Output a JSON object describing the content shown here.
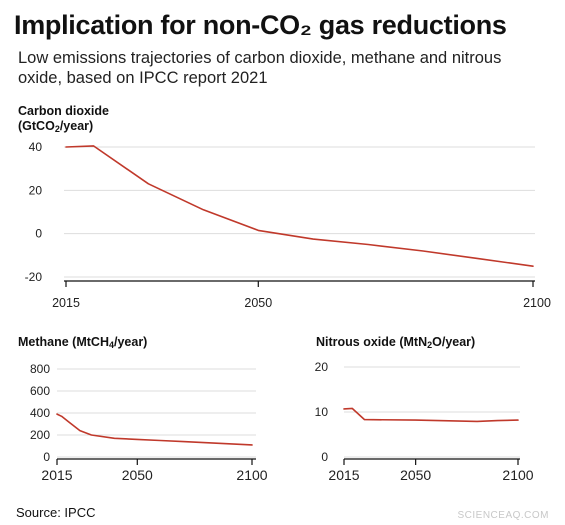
{
  "header": {
    "title": "Implication for non-CO₂ gas reductions",
    "subtitle": "Low emissions trajectories of carbon dioxide, methane and nitrous oxide, based on IPCC report 2021"
  },
  "footer": {
    "source": "Source: IPCC",
    "watermark": "SCIENCEAQ.COM"
  },
  "colors": {
    "line": "#c0392b",
    "grid": "#dddddd",
    "axis": "#111111"
  },
  "chart_data": [
    {
      "id": "co2",
      "type": "line",
      "title_main": "Carbon dioxide",
      "title_unit_pre": "(GtCO",
      "title_unit_sub": "2",
      "title_unit_post": "/year)",
      "x": [
        2015,
        2020,
        2030,
        2040,
        2050,
        2060,
        2070,
        2080,
        2090,
        2100
      ],
      "series": [
        {
          "values": [
            40,
            40.5,
            23,
            11,
            1.5,
            -2.5,
            -5,
            -8,
            -11.5,
            -15
          ]
        }
      ],
      "xlim": [
        2015,
        2100
      ],
      "ylim": [
        -20,
        40
      ],
      "xticks": [
        2015,
        2050,
        2100
      ],
      "yticks": [
        40,
        20,
        0,
        -20
      ],
      "grid": true
    },
    {
      "id": "ch4",
      "type": "line",
      "title_pre": "Methane (MtCH",
      "title_sub": "4",
      "title_post": "/year)",
      "x": [
        2015,
        2017,
        2020,
        2025,
        2030,
        2040,
        2050,
        2060,
        2070,
        2080,
        2090,
        2100
      ],
      "series": [
        {
          "values": [
            390,
            370,
            320,
            240,
            200,
            170,
            160,
            150,
            140,
            130,
            120,
            110
          ]
        }
      ],
      "xlim": [
        2015,
        2100
      ],
      "ylim": [
        0,
        800
      ],
      "xticks": [
        2015,
        2050,
        2100
      ],
      "yticks": [
        800,
        600,
        400,
        200,
        0
      ],
      "grid": true
    },
    {
      "id": "n2o",
      "type": "line",
      "title_pre": "Nitrous oxide (MtN",
      "title_sub": "2",
      "title_post": "O/year)",
      "x": [
        2015,
        2019,
        2025,
        2050,
        2080,
        2090,
        2100
      ],
      "series": [
        {
          "values": [
            10.7,
            10.8,
            8.3,
            8.2,
            7.9,
            8.1,
            8.2
          ]
        }
      ],
      "xlim": [
        2015,
        2100
      ],
      "ylim": [
        0,
        20
      ],
      "xticks": [
        2015,
        2050,
        2100
      ],
      "yticks": [
        20,
        10,
        0
      ],
      "grid": true
    }
  ]
}
